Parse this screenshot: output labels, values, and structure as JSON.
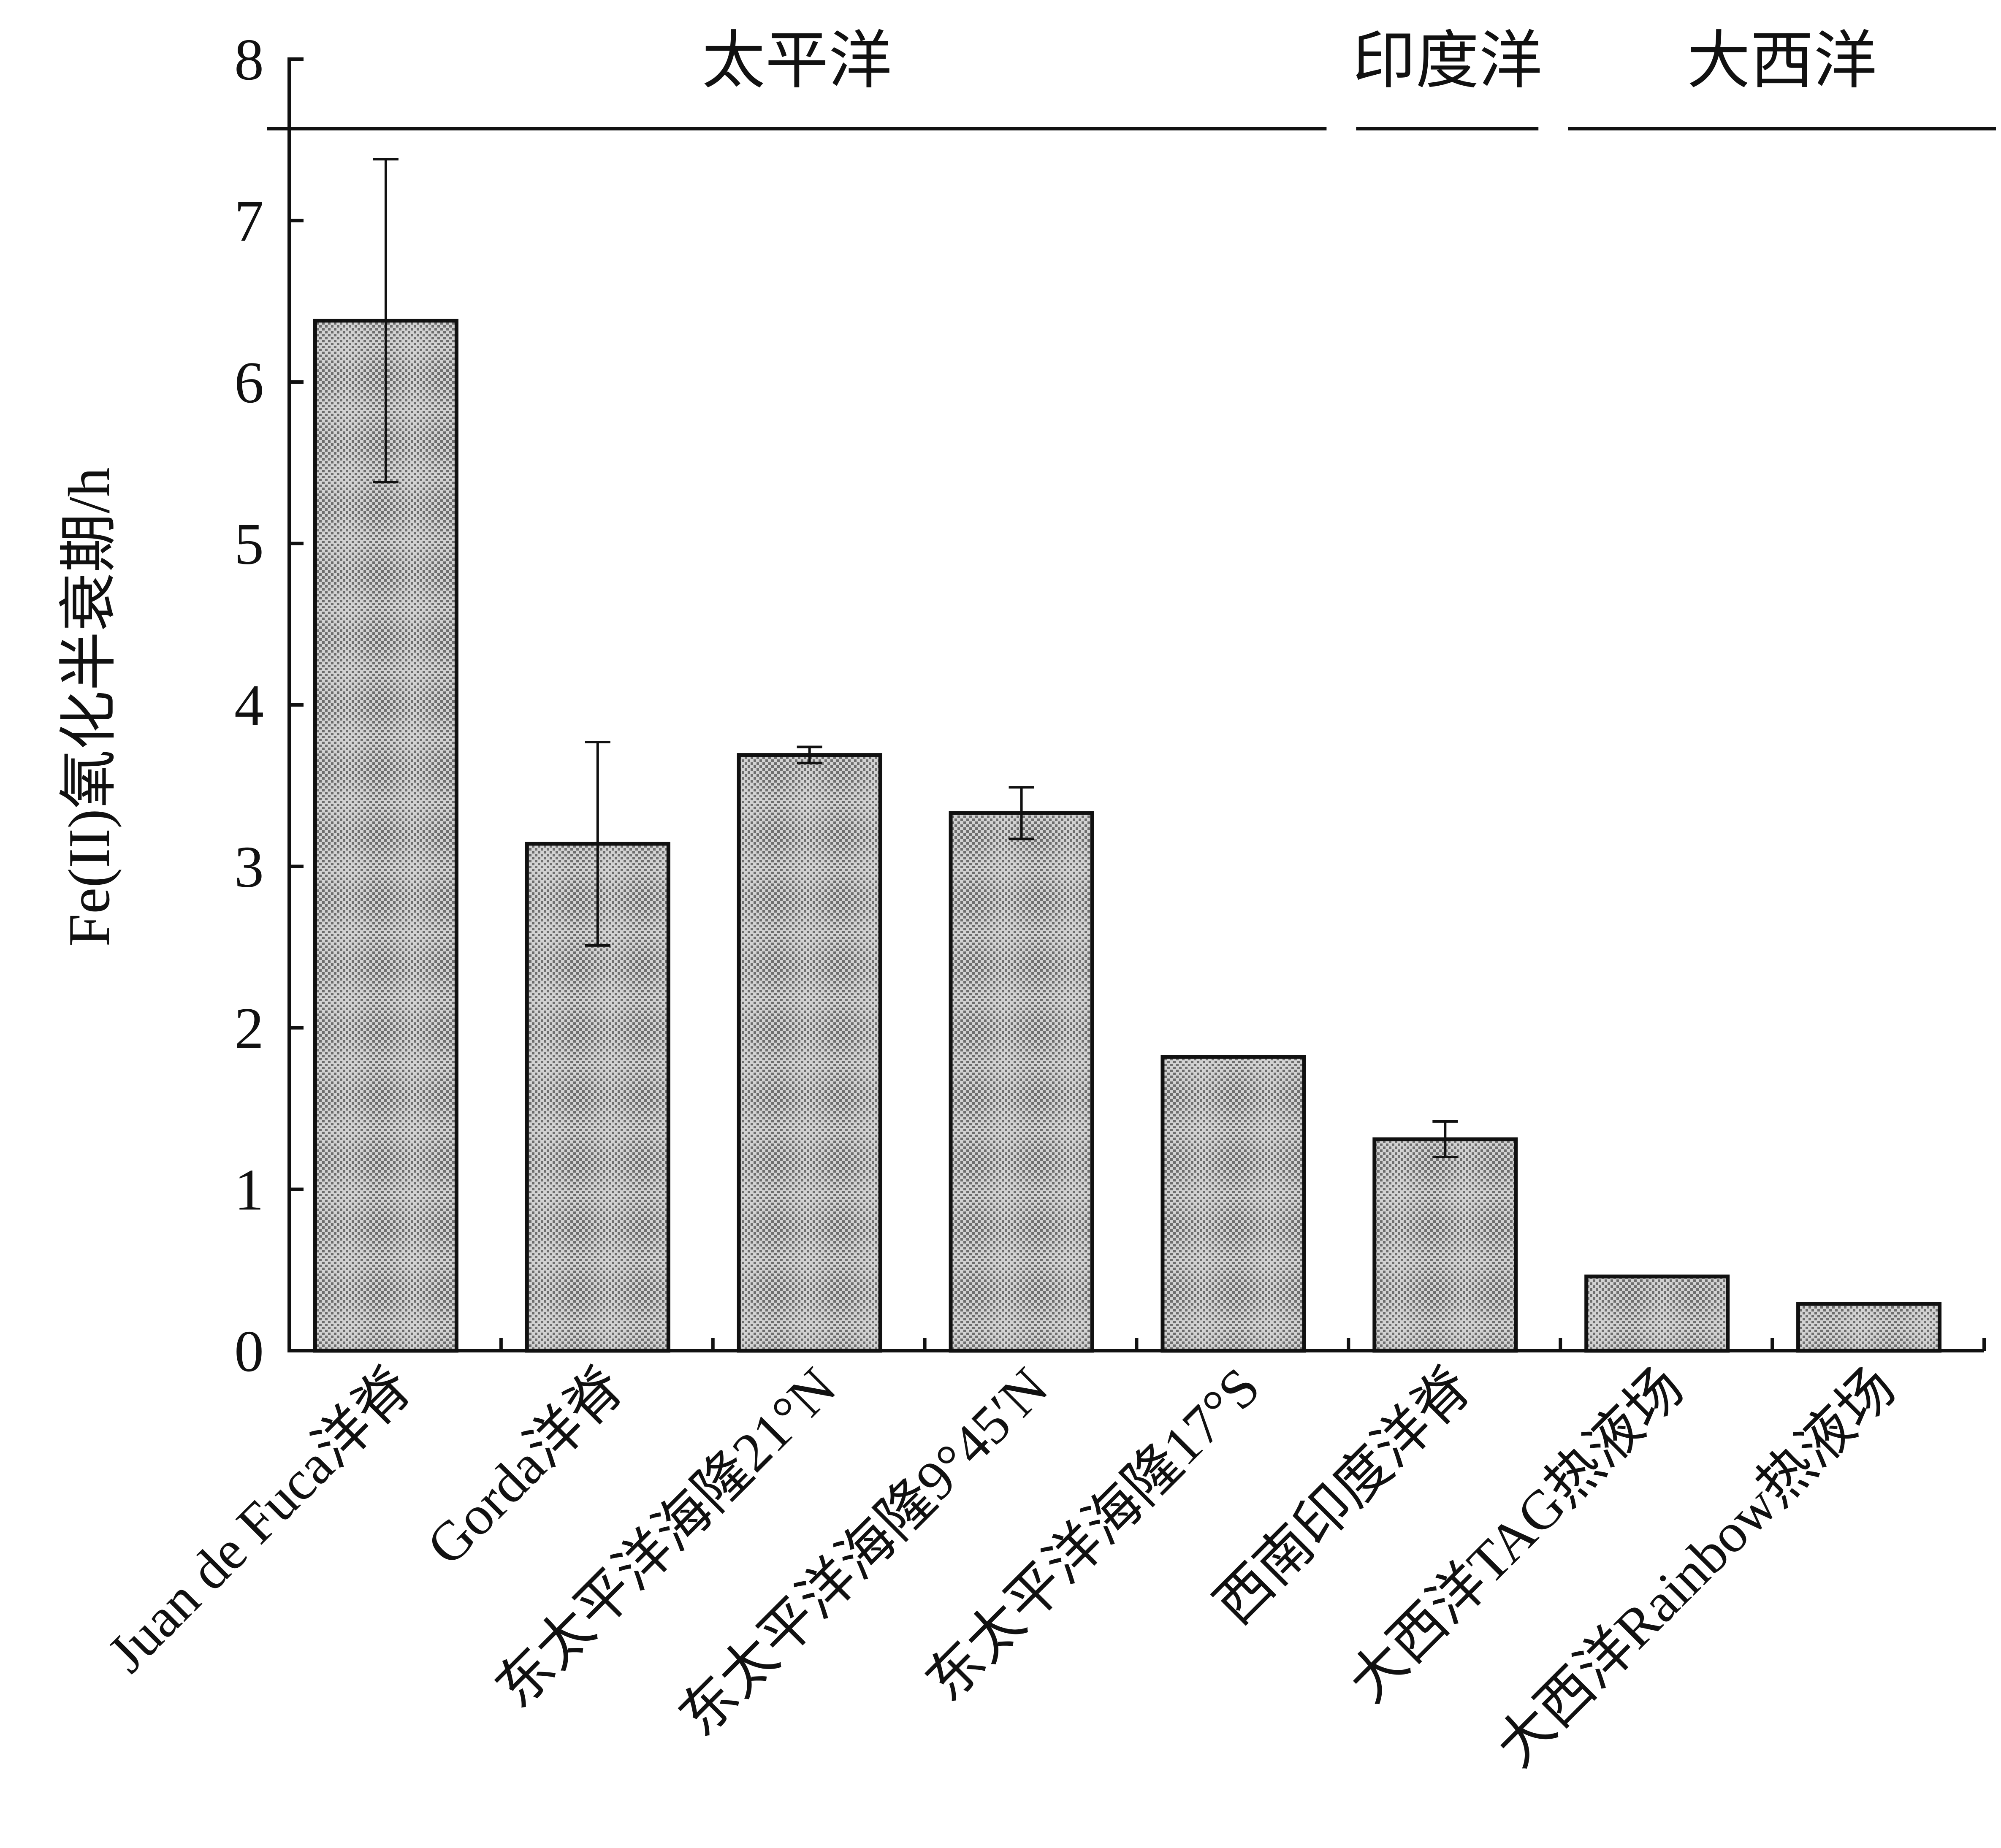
{
  "chart_data": {
    "type": "bar",
    "ylabel": "Fe(II)氧化半衰期/h",
    "xlabel": "",
    "ylim": [
      0,
      8
    ],
    "yticks": [
      "0",
      "1",
      "2",
      "3",
      "4",
      "5",
      "6",
      "7",
      "8"
    ],
    "categories": [
      "Juan de Fuca洋脊",
      "Gorda洋脊",
      "东太平洋海隆21°N",
      "东太平洋海隆9°45′N",
      "东太平洋海隆17°S",
      "西南印度洋脊",
      "大西洋TAG热液场",
      "大西洋Rainbow热液场"
    ],
    "values": [
      6.38,
      3.14,
      3.69,
      3.33,
      1.82,
      1.31,
      0.46,
      0.29
    ],
    "errors": [
      1.0,
      0.63,
      0.05,
      0.16,
      0.0,
      0.11,
      0.0,
      0.0
    ],
    "groups": [
      {
        "label": "太平洋",
        "categories": [
          0,
          4
        ]
      },
      {
        "label": "印度洋",
        "categories": [
          5,
          5
        ]
      },
      {
        "label": "大西洋",
        "categories": [
          6,
          7
        ]
      }
    ],
    "grid": false,
    "legend": "none",
    "bar_fill": "#bdbdbd",
    "bar_stroke": "#111111"
  }
}
